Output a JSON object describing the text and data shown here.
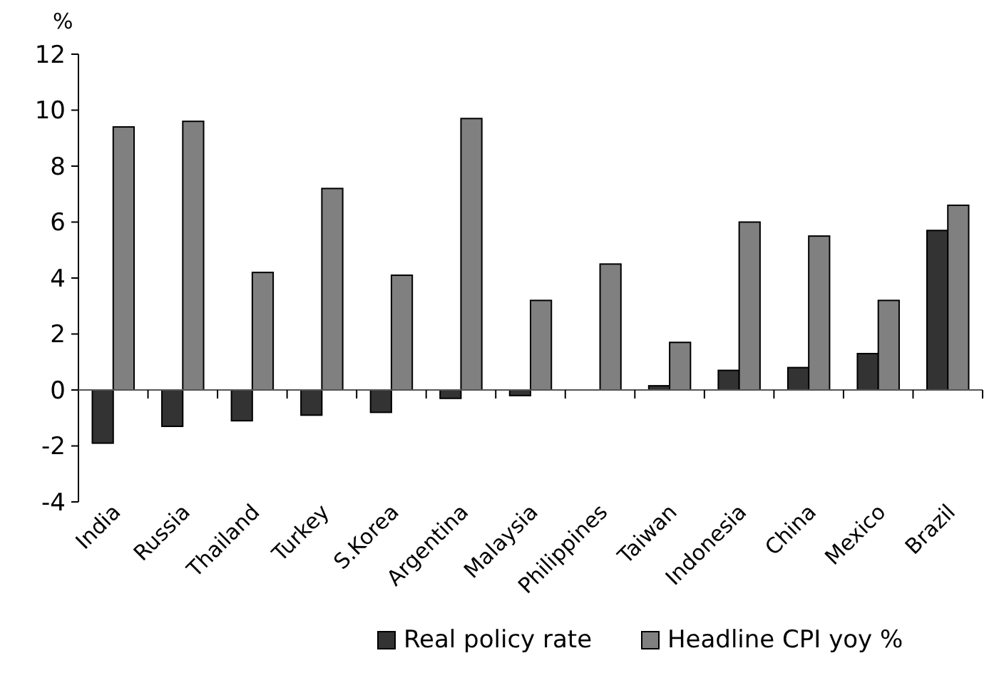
{
  "chart_data": {
    "type": "bar",
    "ylabel": "%",
    "categories": [
      "India",
      "Russia",
      "Thailand",
      "Turkey",
      "S.Korea",
      "Argentina",
      "Malaysia",
      "Philippines",
      "Taiwan",
      "Indonesia",
      "China",
      "Mexico",
      "Brazil"
    ],
    "series": [
      {
        "name": "Real policy rate",
        "color": "#333333",
        "values": [
          -1.9,
          -1.3,
          -1.1,
          -0.9,
          -0.8,
          -0.3,
          -0.2,
          0,
          0.15,
          0.7,
          0.8,
          1.3,
          5.7
        ]
      },
      {
        "name": "Headline CPI yoy %",
        "color": "#808080",
        "values": [
          9.4,
          9.6,
          4.2,
          7.2,
          4.1,
          9.7,
          3.2,
          4.5,
          1.7,
          6.0,
          5.5,
          3.2,
          6.6
        ]
      }
    ],
    "ylim": [
      -4,
      12
    ],
    "yticks": [
      -4,
      -2,
      0,
      2,
      4,
      6,
      8,
      10,
      12
    ],
    "legend": "bottom"
  }
}
